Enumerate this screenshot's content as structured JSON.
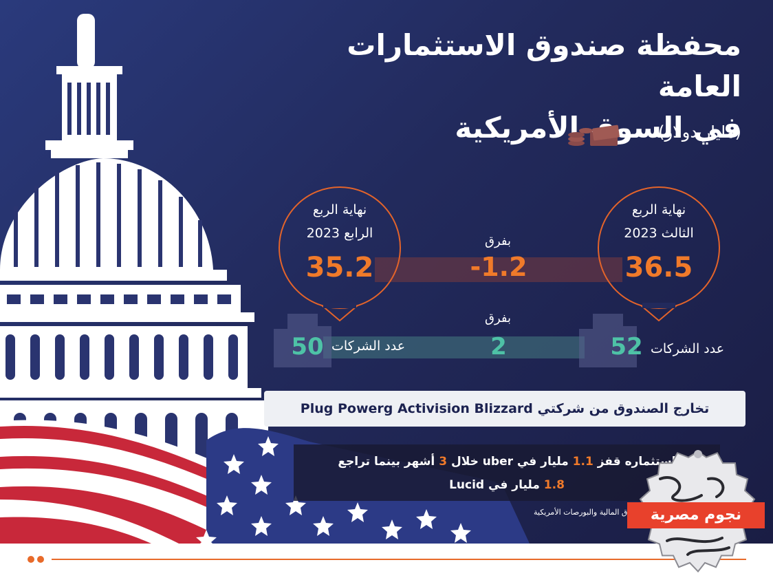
{
  "title": {
    "line1": "محفظة صندوق الاستثمارات العامة",
    "line2": "في السوق الأمريكية"
  },
  "unit": "(مليار دولار)",
  "q3": {
    "label_line1": "نهاية الربع",
    "label_line2": "الثالث 2023",
    "value": "36.5"
  },
  "q4": {
    "label_line1": "نهاية الربع",
    "label_line2": "الرابع 2023",
    "value": "35.2"
  },
  "diff_value": {
    "label": "بفرق",
    "value": "-1.2"
  },
  "companies": {
    "label": "عدد الشركات",
    "q3_count": "52",
    "q4_count": "50",
    "diff_label": "بفرق",
    "diff_count": "2"
  },
  "banner": "تخارج الصندوق من شركتي Plug Powerg Activision Blizzard",
  "info": {
    "part1": "استثماره قفز",
    "num1": "1.1",
    "part2": "مليار في uber خلال",
    "num2": "3",
    "part3": "أشهر بينما تراجع",
    "num3": "1.8",
    "part4": "مليار في Lucid"
  },
  "source": "هيئة الأوراق المالية والبورصات الأمريكية",
  "logo": {
    "text": "نجوم مصرية"
  },
  "icons": {
    "money": "money-stack-icon",
    "building": "office-building-icon"
  },
  "colors": {
    "accent": "#f07a2a",
    "teal": "#4ec2a6",
    "background": "#222a5c"
  }
}
